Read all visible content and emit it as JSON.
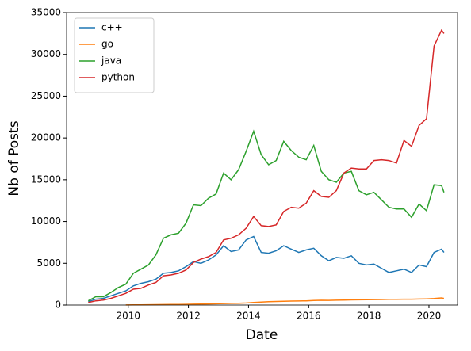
{
  "chart_data": {
    "type": "line",
    "x_label": "Date",
    "y_label": "Nb of Posts",
    "x": [
      2008.67,
      2008.92,
      2009.17,
      2009.42,
      2009.67,
      2009.92,
      2010.17,
      2010.42,
      2010.67,
      2010.92,
      2011.17,
      2011.42,
      2011.67,
      2011.92,
      2012.17,
      2012.42,
      2012.67,
      2012.92,
      2013.17,
      2013.42,
      2013.67,
      2013.92,
      2014.17,
      2014.42,
      2014.67,
      2014.92,
      2015.17,
      2015.42,
      2015.67,
      2015.92,
      2016.17,
      2016.42,
      2016.67,
      2016.92,
      2017.17,
      2017.42,
      2017.67,
      2017.92,
      2018.17,
      2018.42,
      2018.67,
      2018.92,
      2019.17,
      2019.42,
      2019.67,
      2019.92,
      2020.17,
      2020.42,
      2020.5
    ],
    "series": [
      {
        "name": "c++",
        "color": "#1f77b4",
        "values": [
          400,
          700,
          800,
          1100,
          1400,
          1700,
          2300,
          2600,
          2800,
          3100,
          3800,
          3900,
          4100,
          4600,
          5200,
          5000,
          5400,
          6000,
          7100,
          6400,
          6600,
          7800,
          8200,
          6300,
          6200,
          6500,
          7100,
          6700,
          6300,
          6600,
          6800,
          5900,
          5300,
          5700,
          5600,
          5900,
          5000,
          4800,
          4900,
          4400,
          3900,
          4100,
          4300,
          3900,
          4800,
          4600,
          6300,
          6700,
          6300
        ]
      },
      {
        "name": "go",
        "color": "#ff7f0e",
        "values": [
          null,
          null,
          null,
          null,
          null,
          10,
          20,
          30,
          40,
          50,
          60,
          70,
          80,
          90,
          100,
          120,
          130,
          150,
          180,
          200,
          220,
          250,
          300,
          350,
          400,
          430,
          450,
          470,
          480,
          500,
          550,
          570,
          560,
          580,
          600,
          620,
          630,
          640,
          650,
          660,
          680,
          690,
          700,
          700,
          720,
          740,
          780,
          850,
          800
        ]
      },
      {
        "name": "java",
        "color": "#2ca02c",
        "values": [
          500,
          1000,
          1000,
          1500,
          2100,
          2500,
          3800,
          4300,
          4800,
          6000,
          8000,
          8400,
          8600,
          9800,
          12000,
          11900,
          12800,
          13300,
          15800,
          15000,
          16200,
          18400,
          20800,
          18000,
          16800,
          17300,
          19600,
          18500,
          17700,
          17400,
          19100,
          16000,
          15000,
          14700,
          15800,
          16000,
          13700,
          13200,
          13500,
          12600,
          11700,
          11500,
          11500,
          10500,
          12100,
          11300,
          14400,
          14300,
          13500
        ]
      },
      {
        "name": "python",
        "color": "#d62728",
        "values": [
          300,
          500,
          600,
          800,
          1100,
          1400,
          1900,
          2000,
          2400,
          2700,
          3500,
          3600,
          3800,
          4200,
          5100,
          5500,
          5800,
          6300,
          7800,
          8000,
          8400,
          9200,
          10600,
          9500,
          9400,
          9600,
          11200,
          11700,
          11600,
          12200,
          13700,
          13000,
          12900,
          13700,
          15800,
          16400,
          16300,
          16300,
          17300,
          17400,
          17300,
          17000,
          19700,
          19000,
          21500,
          22300,
          31000,
          32900,
          32500
        ]
      }
    ],
    "xlim": [
      2007.95,
      2020.95
    ],
    "xticks": [
      2010,
      2012,
      2014,
      2016,
      2018,
      2020
    ],
    "ylim": [
      0,
      35000
    ],
    "yticks": [
      0,
      5000,
      10000,
      15000,
      20000,
      25000,
      30000,
      35000
    ],
    "legend": "upper left"
  }
}
